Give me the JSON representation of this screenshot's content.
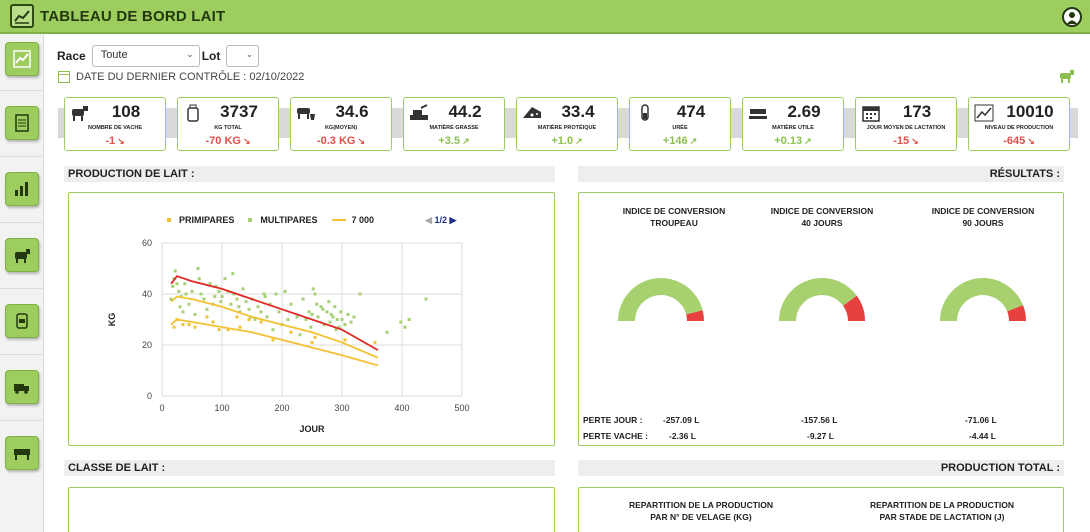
{
  "app": {
    "title": "TABLEAU DE BORD LAIT"
  },
  "filters": {
    "race_label": "Race",
    "race_value": "Toute",
    "lot_label": "Lot",
    "lot_value": ""
  },
  "last_control": "DATE DU DERNIER CONTRÔLE : 02/10/2022",
  "kpis": [
    {
      "value": "108",
      "label": "NOMBRE DE VACHE",
      "delta": "-1",
      "trend": "down",
      "icon": "cow-icon"
    },
    {
      "value": "3737",
      "label": "KG TOTAL",
      "delta": "-70 KG",
      "trend": "down",
      "icon": "bottle-icon"
    },
    {
      "value": "34.6",
      "label": "KG(MOYEN)",
      "delta": "-0.3 KG",
      "trend": "down",
      "icon": "cow-bucket-icon"
    },
    {
      "value": "44.2",
      "label": "MATIÈRE GRASSE",
      "delta": "+3.5",
      "trend": "up",
      "icon": "butter-icon"
    },
    {
      "value": "33.4",
      "label": "MATIÈRE PROTÉIQUE",
      "delta": "+1.0",
      "trend": "up",
      "icon": "cheese-icon"
    },
    {
      "value": "474",
      "label": "URÉE",
      "delta": "+146",
      "trend": "up",
      "icon": "test-tube-icon"
    },
    {
      "value": "2.69",
      "label": "MATIÈRE UTILE",
      "delta": "+0.13",
      "trend": "up",
      "icon": "truck-scale-icon"
    },
    {
      "value": "173",
      "label": "JOUR MOYEN DE LACTATION",
      "delta": "-15",
      "trend": "down",
      "icon": "calendar-icon"
    },
    {
      "value": "10010",
      "label": "NIVEAU DE PRODUCTION",
      "delta": "-645",
      "trend": "down",
      "icon": "line-chart-icon"
    }
  ],
  "sections": {
    "production": "PRODUCTION DE LAIT :",
    "results": "RÉSULTATS :",
    "class": "CLASSE DE LAIT :",
    "total": "PRODUCTION TOTAL :"
  },
  "chart_data": {
    "type": "scatter",
    "xlabel": "JOUR",
    "ylabel": "KG",
    "xlim": [
      0,
      500
    ],
    "ylim": [
      0,
      60
    ],
    "xticks": [
      0,
      100,
      200,
      300,
      400,
      500
    ],
    "yticks": [
      0,
      20,
      40,
      60
    ],
    "grid": true,
    "legend_position": "top",
    "pager": "1/2",
    "series": [
      {
        "name": "PRIMIPARES",
        "kind": "points",
        "color": "#f2c233",
        "points": [
          [
            20,
            27
          ],
          [
            25,
            30
          ],
          [
            35,
            28
          ],
          [
            45,
            28
          ],
          [
            55,
            27
          ],
          [
            75,
            31
          ],
          [
            85,
            29
          ],
          [
            95,
            26
          ],
          [
            110,
            26
          ],
          [
            125,
            31
          ],
          [
            130,
            27
          ],
          [
            145,
            30
          ],
          [
            165,
            29
          ],
          [
            185,
            22
          ],
          [
            215,
            25
          ],
          [
            250,
            21
          ],
          [
            255,
            23
          ],
          [
            305,
            22
          ],
          [
            355,
            21
          ]
        ]
      },
      {
        "name": "MULTIPARES",
        "kind": "points",
        "color": "#a7cf74",
        "points": [
          [
            15,
            38
          ],
          [
            18,
            43
          ],
          [
            20,
            46
          ],
          [
            22,
            49
          ],
          [
            25,
            44
          ],
          [
            28,
            41
          ],
          [
            30,
            35
          ],
          [
            32,
            39
          ],
          [
            35,
            33
          ],
          [
            38,
            44
          ],
          [
            40,
            40
          ],
          [
            45,
            36
          ],
          [
            50,
            41
          ],
          [
            55,
            32
          ],
          [
            60,
            50
          ],
          [
            62,
            46
          ],
          [
            65,
            40
          ],
          [
            70,
            38
          ],
          [
            75,
            34
          ],
          [
            80,
            44
          ],
          [
            85,
            36
          ],
          [
            88,
            39
          ],
          [
            90,
            43
          ],
          [
            95,
            41
          ],
          [
            98,
            37
          ],
          [
            100,
            39
          ],
          [
            105,
            46
          ],
          [
            110,
            41
          ],
          [
            115,
            36
          ],
          [
            118,
            48
          ],
          [
            120,
            40
          ],
          [
            125,
            38
          ],
          [
            128,
            35
          ],
          [
            130,
            33
          ],
          [
            135,
            42
          ],
          [
            140,
            37
          ],
          [
            145,
            34
          ],
          [
            148,
            31
          ],
          [
            150,
            38
          ],
          [
            155,
            30
          ],
          [
            160,
            35
          ],
          [
            165,
            33
          ],
          [
            170,
            40
          ],
          [
            172,
            39
          ],
          [
            175,
            31
          ],
          [
            180,
            36
          ],
          [
            185,
            26
          ],
          [
            190,
            40
          ],
          [
            195,
            33
          ],
          [
            200,
            28
          ],
          [
            205,
            41
          ],
          [
            210,
            30
          ],
          [
            215,
            36
          ],
          [
            225,
            31
          ],
          [
            230,
            24
          ],
          [
            235,
            38
          ],
          [
            240,
            30
          ],
          [
            245,
            33
          ],
          [
            248,
            27
          ],
          [
            250,
            32
          ],
          [
            252,
            42
          ],
          [
            255,
            40
          ],
          [
            258,
            36
          ],
          [
            260,
            31
          ],
          [
            265,
            35
          ],
          [
            268,
            34
          ],
          [
            270,
            28
          ],
          [
            275,
            33
          ],
          [
            278,
            37
          ],
          [
            280,
            29
          ],
          [
            282,
            32
          ],
          [
            285,
            31
          ],
          [
            288,
            35
          ],
          [
            290,
            26
          ],
          [
            292,
            30
          ],
          [
            295,
            27
          ],
          [
            298,
            33
          ],
          [
            300,
            30
          ],
          [
            305,
            28
          ],
          [
            310,
            32
          ],
          [
            315,
            29
          ],
          [
            320,
            31
          ],
          [
            330,
            40
          ],
          [
            375,
            25
          ],
          [
            398,
            29
          ],
          [
            405,
            27
          ],
          [
            412,
            30
          ],
          [
            440,
            38
          ]
        ]
      },
      {
        "name": "MULTIPARES",
        "kind": "line",
        "color": "#e02a25",
        "points": [
          [
            15,
            44
          ],
          [
            25,
            47
          ],
          [
            50,
            45
          ],
          [
            100,
            42
          ],
          [
            150,
            38
          ],
          [
            200,
            34
          ],
          [
            250,
            30
          ],
          [
            300,
            26
          ],
          [
            360,
            18
          ]
        ]
      },
      {
        "name": "7 000",
        "kind": "line",
        "color": "#f2c233",
        "points": [
          [
            15,
            37
          ],
          [
            25,
            39
          ],
          [
            50,
            38
          ],
          [
            100,
            35
          ],
          [
            150,
            31
          ],
          [
            200,
            28
          ],
          [
            250,
            25
          ],
          [
            300,
            21
          ],
          [
            360,
            15
          ]
        ]
      },
      {
        "name": "PRIMIPARES",
        "kind": "line",
        "color": "#f2c233",
        "points": [
          [
            15,
            28
          ],
          [
            25,
            30
          ],
          [
            50,
            29
          ],
          [
            100,
            27
          ],
          [
            150,
            25
          ],
          [
            200,
            22
          ],
          [
            250,
            19
          ],
          [
            300,
            16
          ],
          [
            360,
            12
          ]
        ]
      }
    ]
  },
  "gauges": [
    {
      "title1": "INDICE DE CONVERSION",
      "title2": "TROUPEAU",
      "value": 0.92,
      "loss_day": "-257.09 L",
      "loss_cow": "-2.36 L"
    },
    {
      "title1": "INDICE DE CONVERSION",
      "title2": "40 JOURS",
      "value": 0.8,
      "loss_day": "-157.56 L",
      "loss_cow": "-9.27 L"
    },
    {
      "title1": "INDICE DE CONVERSION",
      "title2": "90 JOURS",
      "value": 0.88,
      "loss_day": "-71.06 L",
      "loss_cow": "-4.44 L"
    }
  ],
  "loss_labels": {
    "day": "PERTE JOUR :",
    "cow": "PERTE VACHE :"
  },
  "production_total": {
    "left": {
      "line1": "REPARTITION DE LA PRODUCTION",
      "line2": "PAR N° DE VELAGE (KG)"
    },
    "right": {
      "line1": "REPARTITION DE LA PRODUCTION",
      "line2": "PAR STADE DE LACTATION (J)"
    }
  },
  "colors": {
    "accent": "#9ccd5e",
    "dark": "#23380e",
    "neg": "#e0504a",
    "pos": "#8cc052",
    "gauge_green": "#a7d06f",
    "gauge_red": "#e8403f"
  }
}
